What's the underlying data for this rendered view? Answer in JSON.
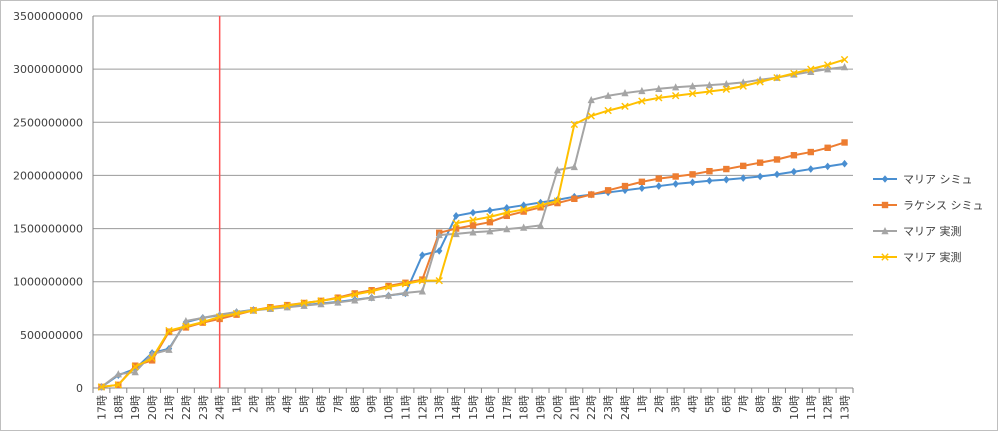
{
  "chart_data": {
    "type": "line",
    "title": "",
    "xlabel": "",
    "ylabel": "",
    "ylim": [
      0,
      3500000000
    ],
    "yticks": [
      "0",
      "500000000",
      "1000000000",
      "1500000000",
      "2000000000",
      "2500000000",
      "3000000000",
      "3500000000"
    ],
    "grid": "horizontal",
    "legend": "right",
    "x": [
      "17時",
      "18時",
      "19時",
      "20時",
      "21時",
      "22時",
      "23時",
      "24時",
      "1時",
      "2時",
      "3時",
      "4時",
      "5時",
      "6時",
      "7時",
      "8時",
      "9時",
      "10時",
      "11時",
      "12時",
      "13時",
      "14時",
      "15時",
      "16時",
      "17時",
      "18時",
      "19時",
      "20時",
      "21時",
      "22時",
      "23時",
      "24時",
      "1時",
      "2時",
      "3時",
      "4時",
      "5時",
      "6時",
      "7時",
      "8時",
      "9時",
      "10時",
      "11時",
      "12時",
      "13時"
    ],
    "vline_x_index": 7,
    "series": [
      {
        "name": "マリア シミュ",
        "color": "#4a8fd1",
        "marker": "diamond",
        "values": [
          10000000,
          120000000,
          180000000,
          330000000,
          370000000,
          620000000,
          660000000,
          685000000,
          715000000,
          735000000,
          750000000,
          765000000,
          780000000,
          795000000,
          810000000,
          830000000,
          850000000,
          870000000,
          890000000,
          1250000000,
          1290000000,
          1620000000,
          1650000000,
          1670000000,
          1695000000,
          1720000000,
          1745000000,
          1770000000,
          1800000000,
          1820000000,
          1840000000,
          1860000000,
          1880000000,
          1900000000,
          1920000000,
          1935000000,
          1950000000,
          1960000000,
          1975000000,
          1990000000,
          2010000000,
          2035000000,
          2060000000,
          2085000000,
          2110000000
        ]
      },
      {
        "name": "ラケシス シミュ",
        "color": "#ed7d31",
        "marker": "square",
        "values": [
          10000000,
          30000000,
          210000000,
          260000000,
          530000000,
          570000000,
          615000000,
          650000000,
          690000000,
          730000000,
          760000000,
          780000000,
          800000000,
          820000000,
          850000000,
          890000000,
          920000000,
          960000000,
          990000000,
          1020000000,
          1460000000,
          1500000000,
          1530000000,
          1560000000,
          1620000000,
          1660000000,
          1700000000,
          1740000000,
          1780000000,
          1820000000,
          1860000000,
          1900000000,
          1940000000,
          1970000000,
          1990000000,
          2010000000,
          2040000000,
          2060000000,
          2090000000,
          2120000000,
          2150000000,
          2190000000,
          2220000000,
          2260000000,
          2310000000
        ]
      },
      {
        "name": "マリア 実測",
        "color": "#a5a5a5",
        "marker": "triangle",
        "values": [
          10000000,
          130000000,
          150000000,
          320000000,
          360000000,
          630000000,
          660000000,
          690000000,
          715000000,
          730000000,
          745000000,
          760000000,
          775000000,
          790000000,
          805000000,
          825000000,
          850000000,
          870000000,
          895000000,
          910000000,
          1440000000,
          1450000000,
          1465000000,
          1475000000,
          1495000000,
          1510000000,
          1530000000,
          2050000000,
          2080000000,
          2710000000,
          2750000000,
          2775000000,
          2795000000,
          2815000000,
          2830000000,
          2840000000,
          2850000000,
          2860000000,
          2875000000,
          2900000000,
          2920000000,
          2950000000,
          2975000000,
          3000000000,
          3020000000
        ]
      },
      {
        "name": "マリア 実測",
        "color": "#ffc000",
        "marker": "x",
        "values": [
          10000000,
          30000000,
          200000000,
          280000000,
          540000000,
          580000000,
          620000000,
          670000000,
          700000000,
          730000000,
          755000000,
          775000000,
          800000000,
          820000000,
          845000000,
          880000000,
          910000000,
          950000000,
          980000000,
          1010000000,
          1010000000,
          1550000000,
          1580000000,
          1610000000,
          1650000000,
          1680000000,
          1720000000,
          1760000000,
          2480000000,
          2560000000,
          2610000000,
          2650000000,
          2700000000,
          2730000000,
          2750000000,
          2770000000,
          2790000000,
          2810000000,
          2840000000,
          2880000000,
          2920000000,
          2960000000,
          3000000000,
          3040000000,
          3090000000
        ]
      }
    ]
  }
}
